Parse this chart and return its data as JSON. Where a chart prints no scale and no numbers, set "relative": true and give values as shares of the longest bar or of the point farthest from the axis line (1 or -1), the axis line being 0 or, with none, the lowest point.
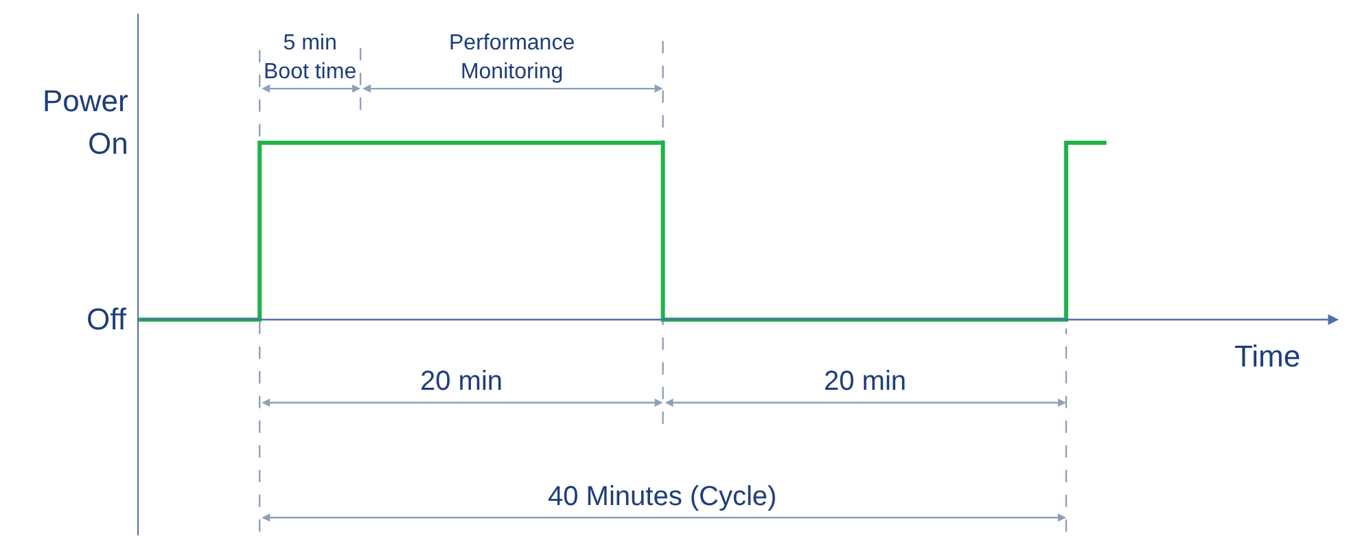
{
  "chart_data": {
    "type": "step",
    "xlabel": "Time",
    "ylabel": "Power",
    "categories": [
      null,
      null,
      null,
      null,
      null,
      null,
      null,
      null,
      null,
      null,
      null,
      null,
      null,
      null,
      null,
      null,
      null,
      null,
      null,
      null,
      null,
      null,
      null,
      null,
      null
    ],
    "series": [
      {
        "color": "#1fb34a",
        "values": [
          0,
          0,
          0,
          1,
          1,
          1,
          1,
          1,
          1,
          1,
          1,
          1,
          1,
          0,
          0,
          0,
          0,
          0,
          0,
          0,
          0,
          0,
          0,
          1,
          1
        ]
      }
    ],
    "relative": true,
    "marker": "none",
    "line_style": "solid",
    "annotations": [
      "On",
      "Off",
      "5 min\nBoot time",
      "Performance\nMonitoring",
      "20 min",
      "20 min",
      "40 Minutes (Cycle)"
    ]
  }
}
